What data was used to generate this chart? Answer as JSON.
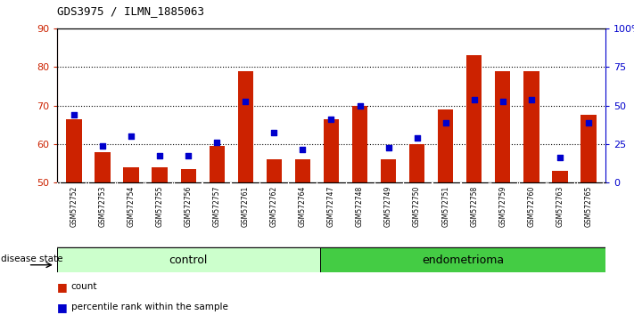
{
  "title": "GDS3975 / ILMN_1885063",
  "samples": [
    "GSM572752",
    "GSM572753",
    "GSM572754",
    "GSM572755",
    "GSM572756",
    "GSM572757",
    "GSM572761",
    "GSM572762",
    "GSM572764",
    "GSM572747",
    "GSM572748",
    "GSM572749",
    "GSM572750",
    "GSM572751",
    "GSM572758",
    "GSM572759",
    "GSM572760",
    "GSM572763",
    "GSM572765"
  ],
  "red_values": [
    66.5,
    58.0,
    54.0,
    54.0,
    53.5,
    59.5,
    79.0,
    56.0,
    56.0,
    66.5,
    70.0,
    56.0,
    60.0,
    69.0,
    83.0,
    79.0,
    79.0,
    53.0,
    67.5
  ],
  "blue_values": [
    67.5,
    59.5,
    62.0,
    57.0,
    57.0,
    60.5,
    71.0,
    63.0,
    58.5,
    66.5,
    70.0,
    59.0,
    61.5,
    65.5,
    71.5,
    71.0,
    71.5,
    56.5,
    65.5
  ],
  "ylim_left": [
    50,
    90
  ],
  "ylim_right": [
    0,
    100
  ],
  "yticks_left": [
    50,
    60,
    70,
    80,
    90
  ],
  "yticks_right": [
    0,
    25,
    50,
    75,
    100
  ],
  "ytick_labels_right": [
    "0",
    "25",
    "50",
    "75",
    "100%"
  ],
  "control_count": 9,
  "endometrioma_count": 10,
  "bar_color": "#cc2200",
  "square_color": "#0000cc",
  "control_color": "#ccffcc",
  "endometrioma_color": "#44cc44",
  "bg_color": "#cccccc",
  "plot_bg_color": "#ffffff",
  "label_count": "count",
  "label_percentile": "percentile rank within the sample",
  "disease_state_label": "disease state",
  "control_label": "control",
  "endometrioma_label": "endometrioma"
}
